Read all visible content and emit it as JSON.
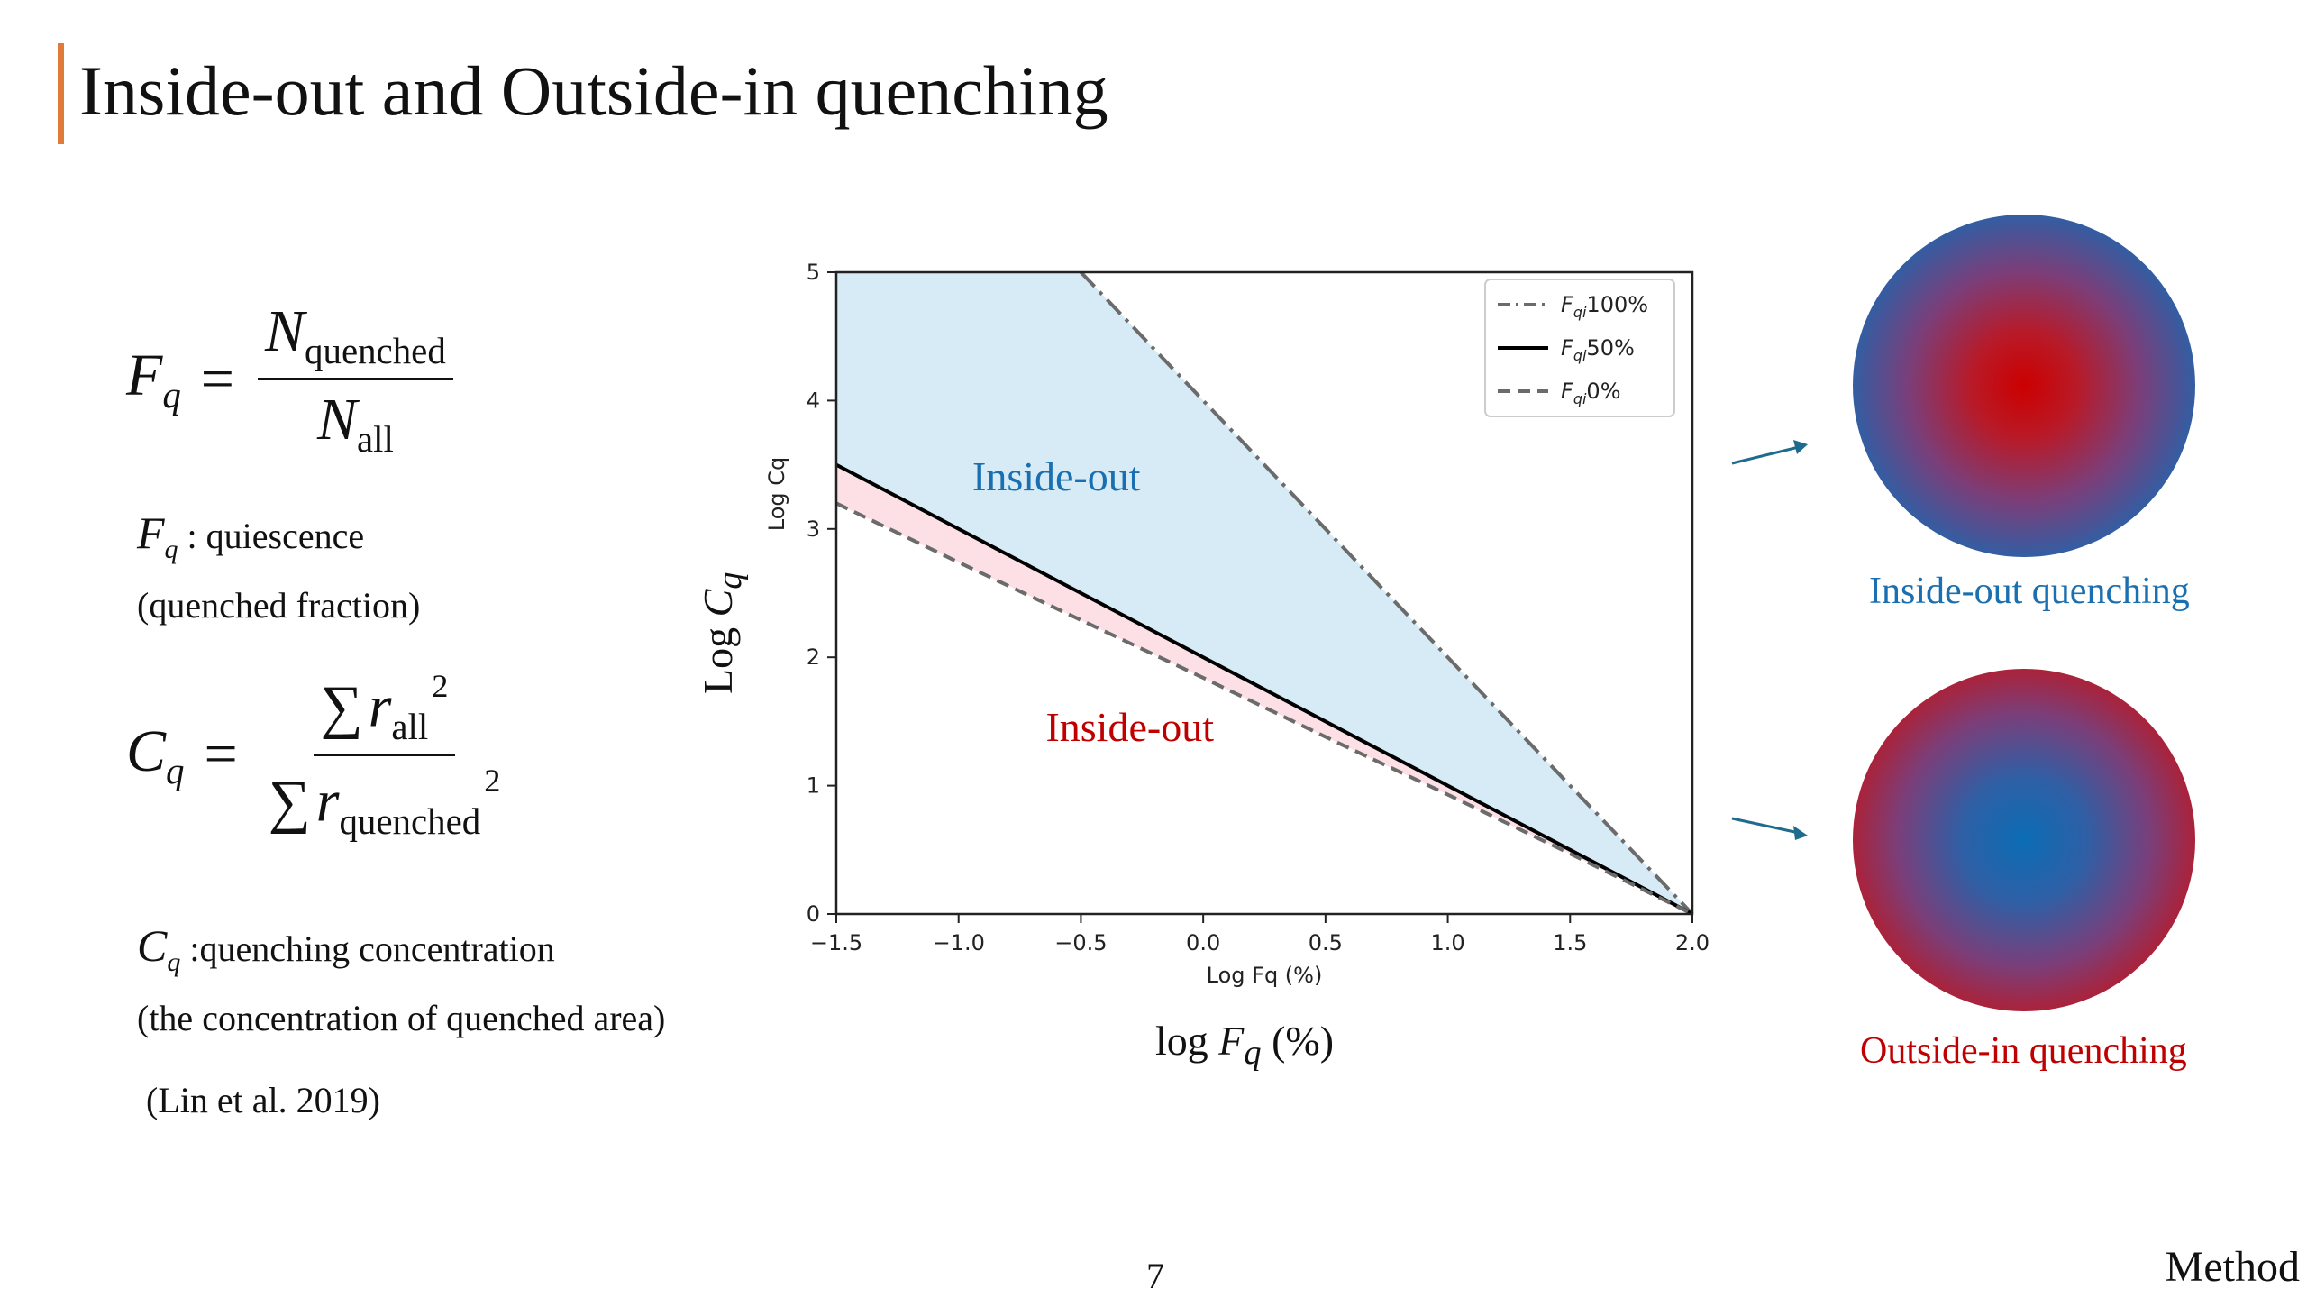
{
  "slide": {
    "title": "Inside-out and Outside-in quenching",
    "page_number": "7",
    "section": "Method",
    "accent_color": "#e07b39"
  },
  "formulas": {
    "fq": {
      "lhs": "F",
      "lhs_sub": "q",
      "eq": "=",
      "num_sym": "N",
      "num_sub": "quenched",
      "den_sym": "N",
      "den_sub": "all"
    },
    "cq": {
      "lhs": "C",
      "lhs_sub": "q",
      "eq": "=",
      "sum": "∑",
      "num_sym": "r",
      "num_sub": "all",
      "num_sup": "2",
      "den_sym": "r",
      "den_sub": "quenched",
      "den_sup": "2"
    }
  },
  "descriptions": {
    "fq_sym": "F",
    "fq_sub": "q",
    "fq_line1": " : quiescence",
    "fq_line2": "(quenched fraction)",
    "cq_sym": "C",
    "cq_sub": "q",
    "cq_line1": " :quenching concentration",
    "cq_line2": "(the concentration of quenched area)",
    "citation": "(Lin et al. 2019)"
  },
  "axis_overlay": {
    "ylabel_prefix": "Log ",
    "ylabel_sym": "C",
    "ylabel_sub": "q",
    "xlabel_prefix": "log ",
    "xlabel_sym": "F",
    "xlabel_sub": "q",
    "xlabel_suffix": " (%)"
  },
  "chart_data": {
    "type": "line",
    "xlabel": "Log Fq (%)",
    "ylabel": "Log Cq",
    "xlim": [
      -1.5,
      2.0
    ],
    "ylim": [
      0,
      5
    ],
    "x_ticks": [
      "−1.5",
      "−1.0",
      "−0.5",
      "0.0",
      "0.5",
      "1.0",
      "1.5",
      "2.0"
    ],
    "y_ticks": [
      "0",
      "1",
      "2",
      "3",
      "4",
      "5"
    ],
    "series": [
      {
        "name": "Fqi100%",
        "style": "dashdot",
        "color": "#6b6b6b",
        "x": [
          -0.5,
          2.0
        ],
        "y": [
          5.0,
          0.0
        ]
      },
      {
        "name": "Fqi50%",
        "style": "solid",
        "color": "#000000",
        "x": [
          -1.5,
          2.0
        ],
        "y": [
          3.5,
          0.0
        ]
      },
      {
        "name": "Fqi0%",
        "style": "dashed",
        "color": "#6b6b6b",
        "x": [
          -1.5,
          -1.0,
          -0.5,
          0.0,
          0.5,
          1.0,
          1.5,
          2.0
        ],
        "y": [
          3.2,
          2.74,
          2.29,
          1.84,
          1.38,
          0.93,
          0.47,
          0.0
        ]
      }
    ],
    "fills": [
      {
        "between": [
          "Fqi50%",
          "Fqi100%"
        ],
        "color": "#d6ebf5",
        "label": "Inside-out",
        "label_color": "#1a6fb0",
        "label_x": -0.6,
        "label_y": 3.3
      },
      {
        "between": [
          "Fqi0%",
          "Fqi50%"
        ],
        "color": "#fde0e6",
        "label": "Inside-out",
        "label_color": "#c00000",
        "label_x": -0.3,
        "label_y": 1.35
      }
    ],
    "legend": {
      "position": "top-right",
      "entries": [
        {
          "sym": "F",
          "sub": "qi",
          "text": "100%"
        },
        {
          "sym": "F",
          "sub": "qi",
          "text": "50%"
        },
        {
          "sym": "F",
          "sub": "qi",
          "text": "0%"
        }
      ]
    },
    "grid": false
  },
  "illustrations": {
    "inside_out_caption": "Inside-out quenching",
    "inside_out_color": "#1a6fb0",
    "outside_in_caption": "Outside-in quenching",
    "outside_in_color": "#c00000",
    "arrow_color": "#1f6b8e"
  }
}
